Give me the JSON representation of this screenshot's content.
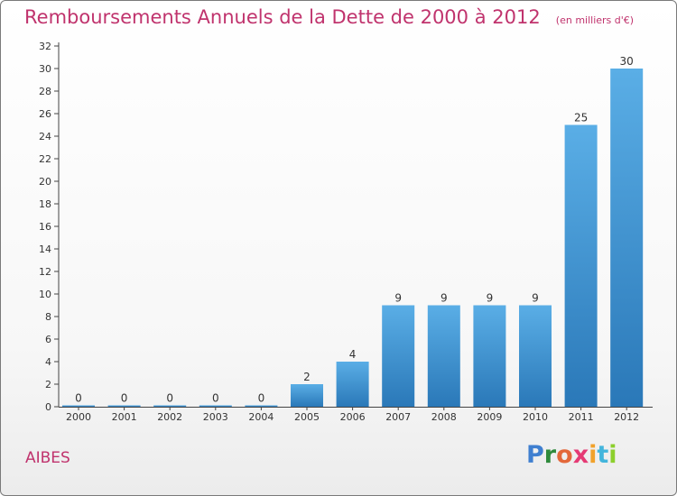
{
  "title": "Remboursements Annuels de la Dette de 2000 à 2012",
  "subtitle": "(en milliers d'€)",
  "place": "AIBES",
  "brand": {
    "text": "Proxiti",
    "colors": [
      "#3f7fd0",
      "#2f8a3c",
      "#e3683a",
      "#e53a74",
      "#f1a22b",
      "#43b5dc",
      "#8ccf2c"
    ]
  },
  "colors": {
    "title": "#c0336d",
    "bar_top": "#5aaee6",
    "bar_bottom": "#2a78b8",
    "axis": "#444444"
  },
  "chart_data": {
    "type": "bar",
    "categories": [
      "2000",
      "2001",
      "2002",
      "2003",
      "2004",
      "2005",
      "2006",
      "2007",
      "2008",
      "2009",
      "2010",
      "2011",
      "2012"
    ],
    "values": [
      0,
      0,
      0,
      0,
      0,
      2,
      4,
      9,
      9,
      9,
      9,
      25,
      30
    ],
    "data_labels": [
      "0",
      "0",
      "0",
      "0",
      "0",
      "2",
      "4",
      "9",
      "9",
      "9",
      "9",
      "25",
      "30"
    ],
    "yticks": [
      "0",
      "2",
      "4",
      "6",
      "8",
      "10",
      "12",
      "14",
      "16",
      "18",
      "20",
      "22",
      "24",
      "26",
      "28",
      "30",
      "32"
    ],
    "ylim": [
      0,
      32
    ],
    "grid": false,
    "legend": "none"
  }
}
